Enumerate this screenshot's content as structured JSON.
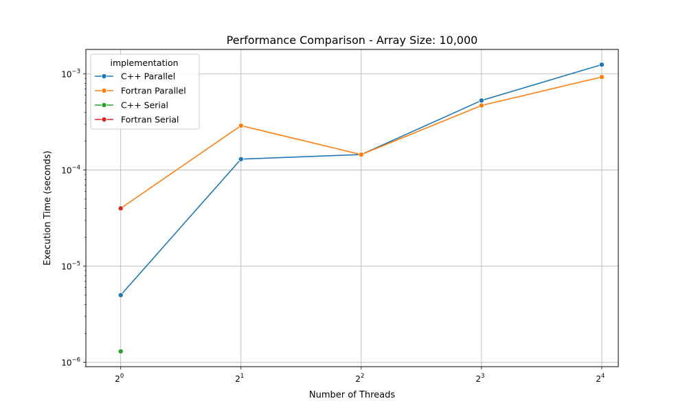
{
  "chart_data": {
    "type": "line",
    "title": "Performance Comparison - Array Size: 10,000",
    "xlabel": "Number of Threads",
    "ylabel": "Execution Time (seconds)",
    "x_scale": "log2",
    "y_scale": "log10",
    "xlim": [
      0.818,
      17.6
    ],
    "ylim": [
      9e-07,
      0.0018
    ],
    "grid": true,
    "x_ticks": [
      {
        "value": 1,
        "base": "2",
        "exp": "0"
      },
      {
        "value": 2,
        "base": "2",
        "exp": "1"
      },
      {
        "value": 4,
        "base": "2",
        "exp": "2"
      },
      {
        "value": 8,
        "base": "2",
        "exp": "3"
      },
      {
        "value": 16,
        "base": "2",
        "exp": "4"
      }
    ],
    "y_ticks": [
      {
        "value": 1e-06,
        "base": "10",
        "exp": "−6"
      },
      {
        "value": 1e-05,
        "base": "10",
        "exp": "−5"
      },
      {
        "value": 0.0001,
        "base": "10",
        "exp": "−4"
      },
      {
        "value": 0.001,
        "base": "10",
        "exp": "−3"
      }
    ],
    "legend": {
      "title": "implementation",
      "placement": "top-left"
    },
    "series": [
      {
        "name": "C++ Parallel",
        "color": "#1f77b4",
        "x": [
          1,
          2,
          4,
          8,
          16
        ],
        "y": [
          5e-06,
          0.00013,
          0.000145,
          0.00053,
          0.00125
        ]
      },
      {
        "name": "Fortran Parallel",
        "color": "#ff7f0e",
        "x": [
          1,
          2,
          4,
          8,
          16
        ],
        "y": [
          4e-05,
          0.00029,
          0.000145,
          0.00047,
          0.00093
        ]
      },
      {
        "name": "C++ Serial",
        "color": "#2ca02c",
        "x": [
          1
        ],
        "y": [
          1.3e-06
        ]
      },
      {
        "name": "Fortran Serial",
        "color": "#d62728",
        "x": [
          1
        ],
        "y": [
          4e-05
        ]
      }
    ]
  }
}
